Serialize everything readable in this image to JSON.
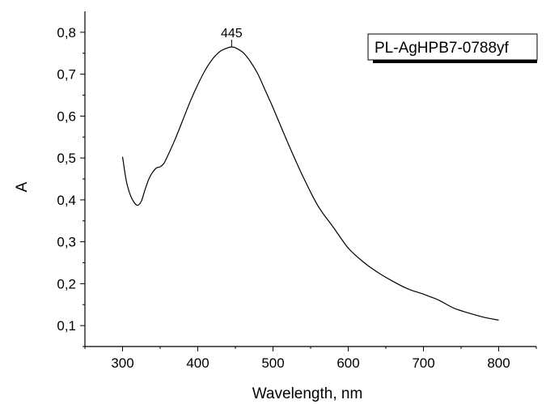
{
  "chart_data": {
    "type": "line",
    "xlabel": "Wavelength, nm",
    "ylabel": "A",
    "xlim": [
      250,
      850
    ],
    "ylim": [
      0.05,
      0.85
    ],
    "x_ticks": [
      "300",
      "400",
      "500",
      "600",
      "700",
      "800"
    ],
    "y_ticks": [
      "0,1",
      "0,2",
      "0,3",
      "0,4",
      "0,5",
      "0,6",
      "0,7",
      "0,8"
    ],
    "x_tick_values": [
      300,
      400,
      500,
      600,
      700,
      800
    ],
    "y_tick_values": [
      0.1,
      0.2,
      0.3,
      0.4,
      0.5,
      0.6,
      0.7,
      0.8
    ],
    "grid": false,
    "legend_position": "top-right",
    "series": [
      {
        "name": "PL-AgHPB7-0788yf",
        "color": "#000000",
        "x": [
          300,
          305,
          310,
          315,
          320,
          325,
          330,
          335,
          340,
          345,
          350,
          355,
          360,
          370,
          380,
          390,
          400,
          410,
          420,
          430,
          440,
          445,
          450,
          460,
          470,
          480,
          490,
          500,
          520,
          540,
          560,
          580,
          600,
          620,
          640,
          660,
          680,
          700,
          710,
          720,
          740,
          760,
          780,
          800
        ],
        "y": [
          0.503,
          0.445,
          0.413,
          0.395,
          0.387,
          0.397,
          0.425,
          0.45,
          0.466,
          0.476,
          0.479,
          0.487,
          0.505,
          0.545,
          0.59,
          0.635,
          0.675,
          0.71,
          0.737,
          0.755,
          0.763,
          0.765,
          0.763,
          0.752,
          0.73,
          0.7,
          0.66,
          0.62,
          0.535,
          0.455,
          0.385,
          0.335,
          0.285,
          0.252,
          0.226,
          0.205,
          0.187,
          0.175,
          0.168,
          0.161,
          0.142,
          0.13,
          0.12,
          0.113
        ]
      }
    ],
    "annotations": [
      {
        "text": "445",
        "x": 445,
        "y": 0.765
      }
    ]
  }
}
